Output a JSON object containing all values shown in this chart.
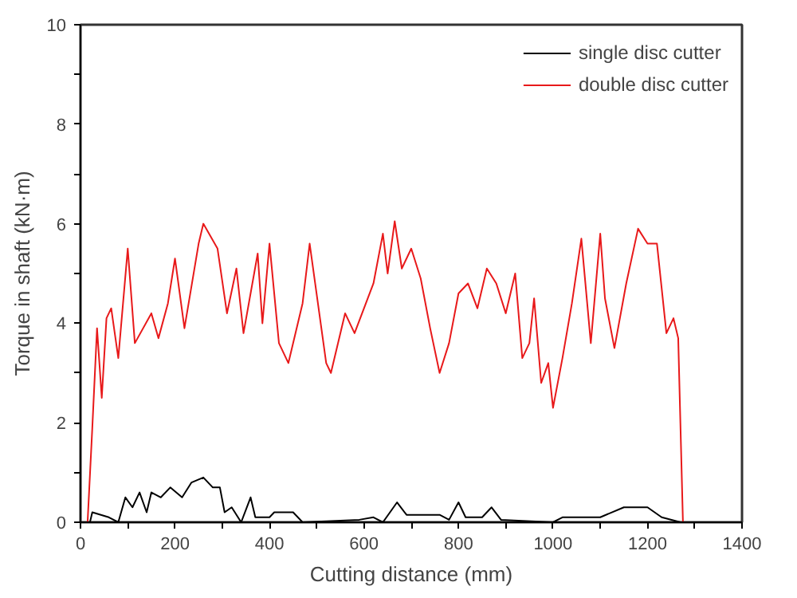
{
  "chart_data": {
    "type": "line",
    "xlabel": "Cutting distance (mm)",
    "ylabel": "Torque in shaft (kN·m)",
    "xlim": [
      0,
      1400
    ],
    "ylim": [
      0,
      10
    ],
    "xticks": [
      0,
      {
        "value": 100,
        "label": null
      },
      200,
      {
        "value": 300,
        "label": null
      },
      400,
      {
        "value": 500,
        "label": null
      },
      600,
      {
        "value": 700,
        "label": null
      },
      800,
      {
        "value": 900,
        "label": null
      },
      1000,
      {
        "value": 1100,
        "label": null
      },
      1200,
      {
        "value": 1300,
        "label": null
      },
      1400
    ],
    "yticks": [
      0,
      {
        "value": 1,
        "label": null
      },
      2,
      {
        "value": 3,
        "label": null
      },
      4,
      {
        "value": 5,
        "label": null
      },
      6,
      {
        "value": 7,
        "label": null
      },
      8,
      {
        "value": 9,
        "label": null
      },
      10
    ],
    "grid": false,
    "legend": "top right",
    "marker": "none",
    "line_style": "solid",
    "series": [
      {
        "name": "single disc cutter",
        "color": "#000000",
        "x": [
          0,
          20,
          25,
          60,
          80,
          95,
          110,
          125,
          140,
          150,
          170,
          190,
          215,
          235,
          260,
          280,
          295,
          305,
          320,
          340,
          360,
          370,
          400,
          410,
          450,
          470,
          590,
          620,
          640,
          670,
          690,
          760,
          780,
          800,
          815,
          850,
          870,
          890,
          1000,
          1020,
          1100,
          1150,
          1200,
          1230,
          1270
        ],
        "values": [
          0,
          0,
          0.2,
          0.1,
          0,
          0.5,
          0.3,
          0.6,
          0.2,
          0.6,
          0.5,
          0.7,
          0.5,
          0.8,
          0.9,
          0.7,
          0.7,
          0.2,
          0.3,
          0,
          0.5,
          0.1,
          0.1,
          0.2,
          0.2,
          0,
          0.05,
          0.1,
          0,
          0.4,
          0.15,
          0.15,
          0.05,
          0.4,
          0.1,
          0.1,
          0.3,
          0.05,
          0,
          0.1,
          0.1,
          0.3,
          0.3,
          0.1,
          0
        ]
      },
      {
        "name": "double disc cutter",
        "color": "#e8191a",
        "x": [
          15,
          25,
          35,
          45,
          55,
          65,
          80,
          100,
          115,
          150,
          165,
          185,
          200,
          220,
          250,
          260,
          290,
          310,
          330,
          345,
          375,
          385,
          400,
          420,
          440,
          470,
          485,
          520,
          530,
          560,
          580,
          600,
          620,
          640,
          650,
          665,
          680,
          700,
          720,
          740,
          760,
          780,
          800,
          820,
          840,
          860,
          880,
          900,
          920,
          935,
          950,
          960,
          975,
          990,
          1000,
          1020,
          1040,
          1060,
          1080,
          1100,
          1110,
          1130,
          1155,
          1180,
          1200,
          1220,
          1240,
          1255,
          1265,
          1275
        ],
        "values": [
          0,
          1.9,
          3.9,
          2.5,
          4.1,
          4.3,
          3.3,
          5.5,
          3.6,
          4.2,
          3.7,
          4.4,
          5.3,
          3.9,
          5.6,
          6.0,
          5.5,
          4.2,
          5.1,
          3.8,
          5.4,
          4.0,
          5.6,
          3.6,
          3.2,
          4.4,
          5.6,
          3.2,
          3.0,
          4.2,
          3.8,
          4.3,
          4.8,
          5.8,
          5.0,
          6.05,
          5.1,
          5.5,
          4.9,
          3.9,
          3.0,
          3.6,
          4.6,
          4.8,
          4.3,
          5.1,
          4.8,
          4.2,
          5.0,
          3.3,
          3.6,
          4.5,
          2.8,
          3.2,
          2.3,
          3.3,
          4.4,
          5.7,
          3.6,
          5.8,
          4.5,
          3.5,
          4.8,
          5.9,
          5.6,
          5.6,
          3.8,
          4.1,
          3.7,
          0
        ]
      }
    ]
  }
}
